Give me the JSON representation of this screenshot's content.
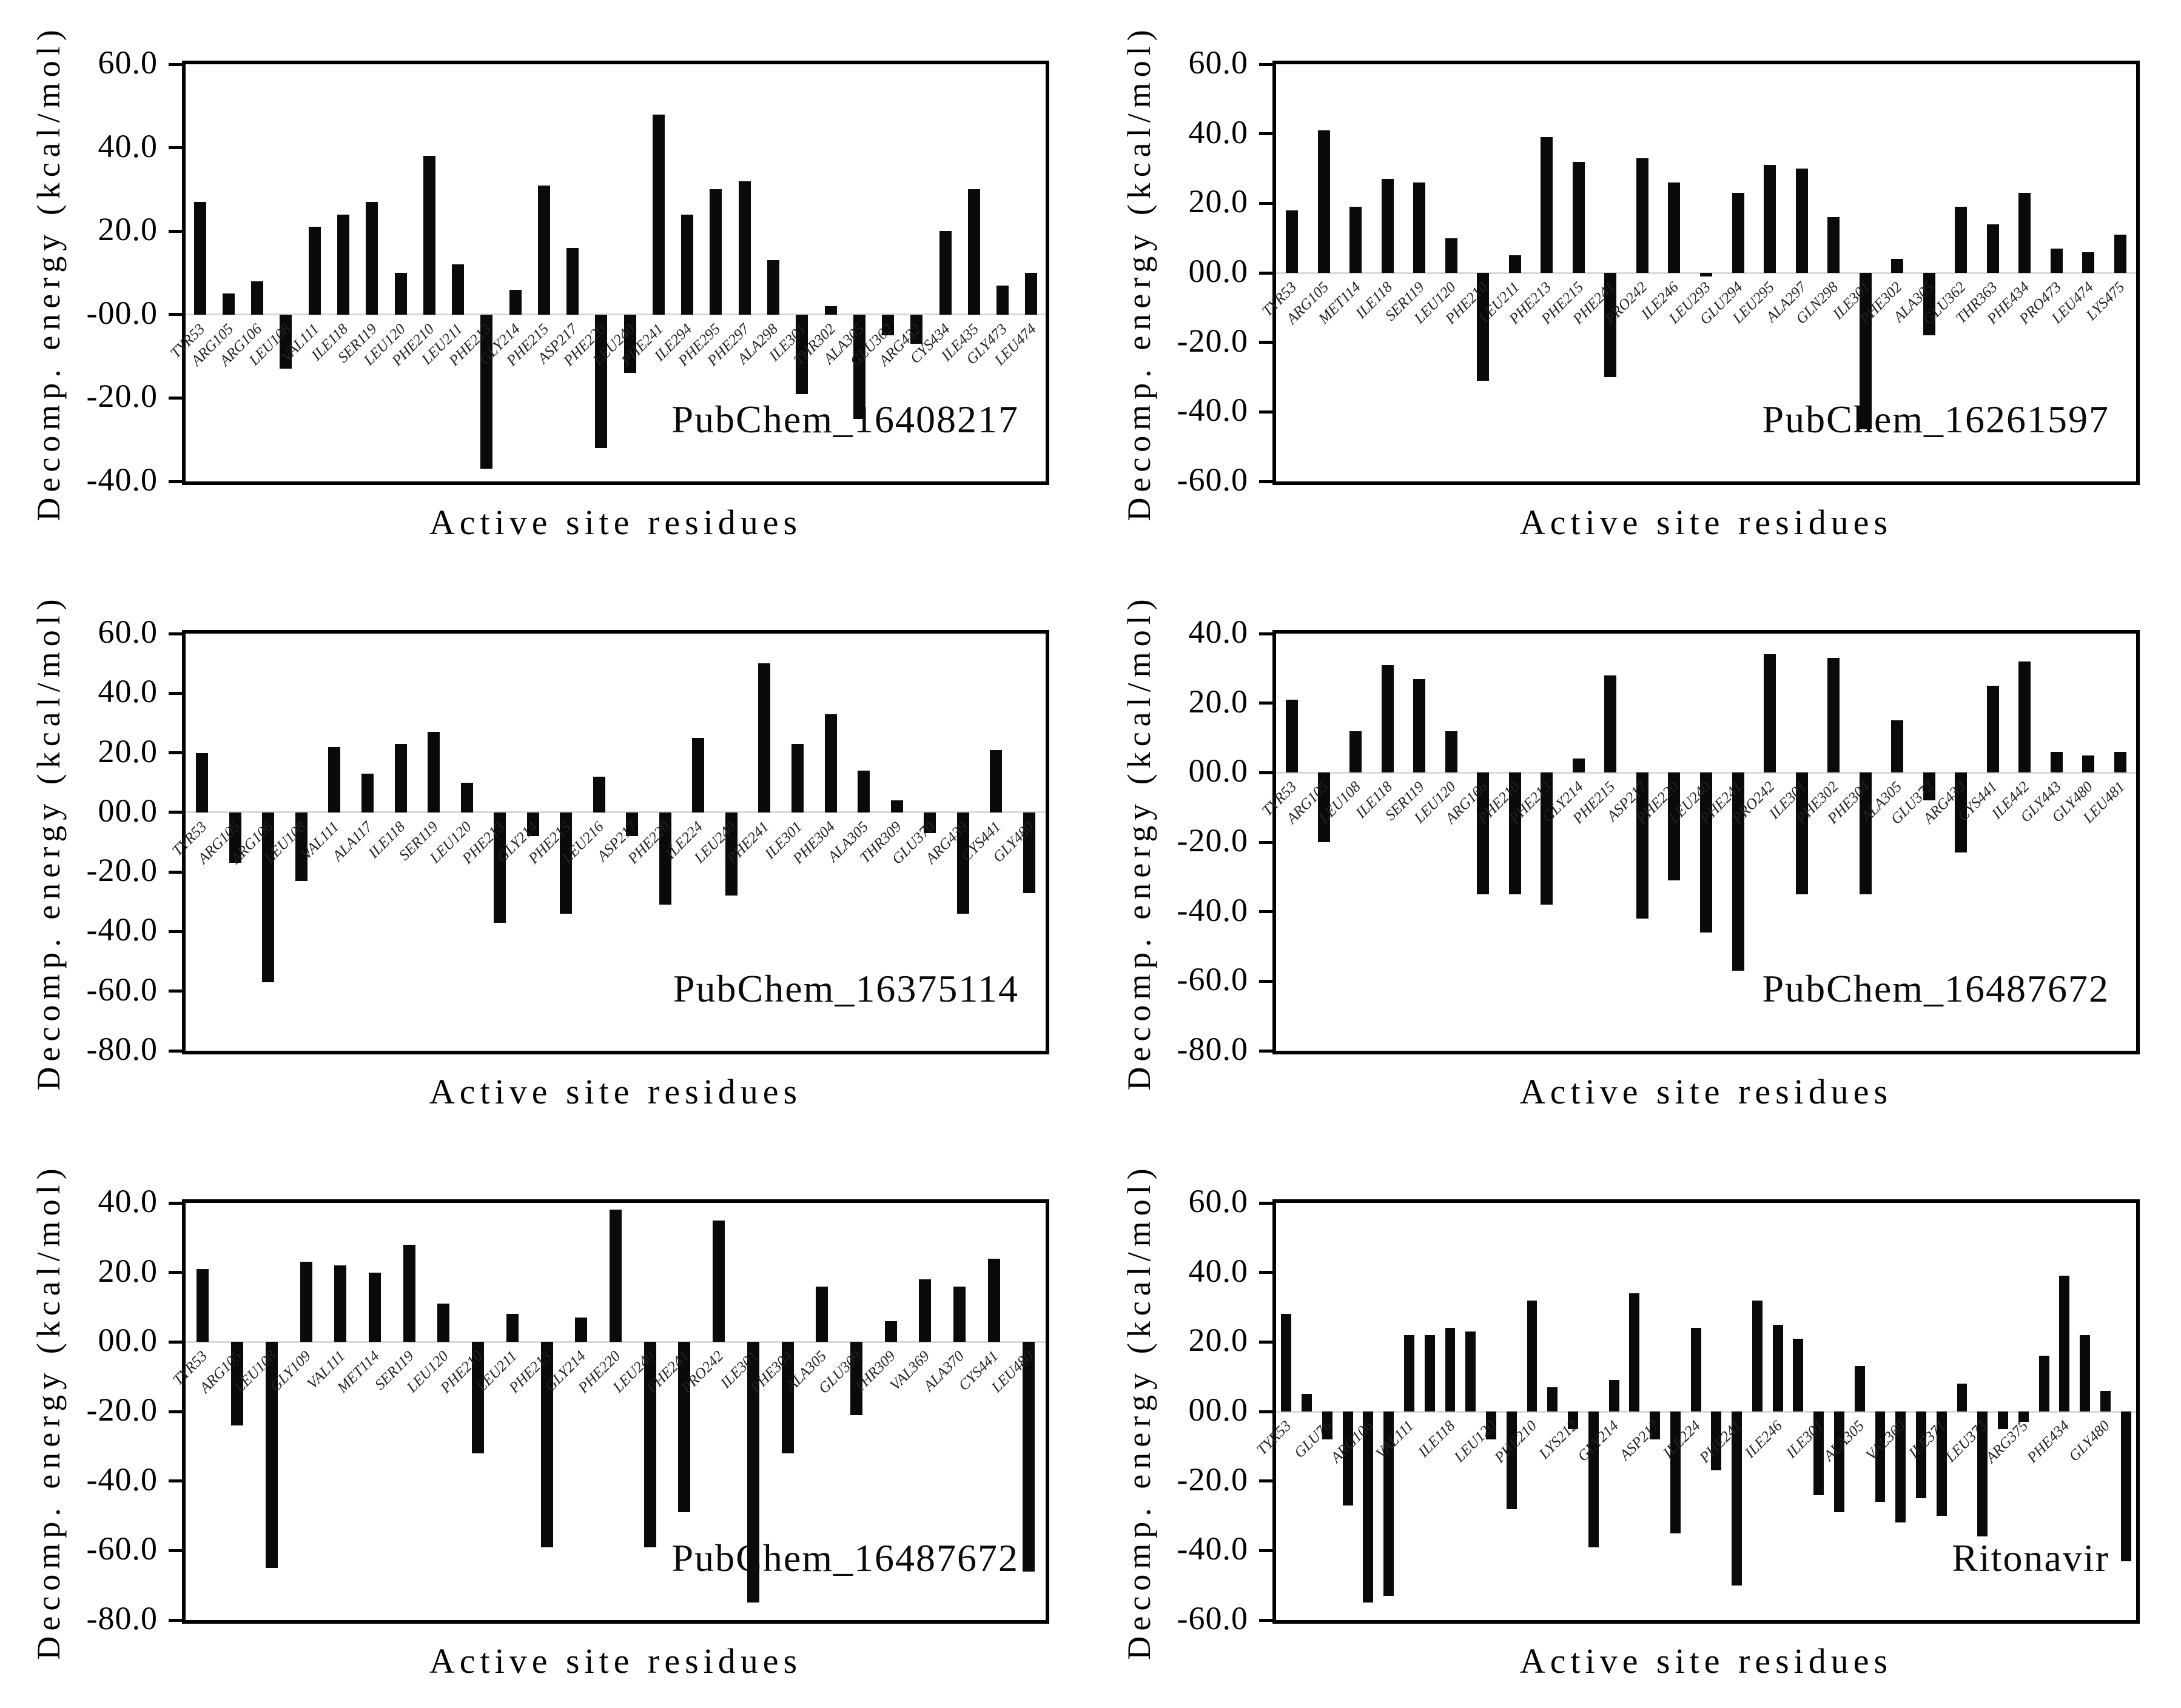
{
  "figure": {
    "xlabel": "Active site residues",
    "ylabel": "Decomp. energy (kcal/mol)",
    "bar_color": "#0a0a0a",
    "zero_line_color": "#d9d9d9"
  },
  "chart_data": [
    {
      "type": "bar",
      "panel": "top-left",
      "annotation": "PubChem_16408217",
      "xlabel": "Active site residues",
      "ylabel": "Decomp. energy (kcal/mol)",
      "ylim": [
        60,
        -40
      ],
      "grid": false,
      "yticks": [
        {
          "v": 60,
          "label": "60.0"
        },
        {
          "v": 40,
          "label": "40.0"
        },
        {
          "v": 20,
          "label": "20.0"
        },
        {
          "v": 0,
          "label": "-00.0"
        },
        {
          "v": -20,
          "label": "-20.0"
        },
        {
          "v": -40,
          "label": "-40.0"
        }
      ],
      "categories": [
        "TYR53",
        "ARG105",
        "ARG106",
        "LEU108",
        "VAL111",
        "ILE118",
        "SER119",
        "LEU120",
        "PHE210",
        "LEU211",
        "PHE213",
        "GLY214",
        "PHE215",
        "ASP217",
        "PHE220",
        "LEU240",
        "PHE241",
        "ILE294",
        "PHE295",
        "PHE297",
        "ALA298",
        "ILE301",
        "THR302",
        "ALA305",
        "GLU362",
        "ARG432",
        "CYS434",
        "ILE435",
        "GLY473",
        "LEU474"
      ],
      "values": [
        27,
        5,
        8,
        -13,
        21,
        24,
        27,
        10,
        38,
        12,
        -37,
        6,
        31,
        16,
        -32,
        -14,
        48,
        24,
        30,
        32,
        13,
        -19,
        2,
        -25,
        -5,
        -7,
        20,
        30,
        7,
        10
      ]
    },
    {
      "type": "bar",
      "panel": "top-right",
      "annotation": "PubChem_16261597",
      "xlabel": "Active site residues",
      "ylabel": "Decomp. energy (kcal/mol)",
      "ylim": [
        60,
        -60
      ],
      "grid": false,
      "yticks": [
        {
          "v": 60,
          "label": "60.0"
        },
        {
          "v": 40,
          "label": "40.0"
        },
        {
          "v": 20,
          "label": "20.0"
        },
        {
          "v": 0,
          "label": "00.0"
        },
        {
          "v": -20,
          "label": "-20.0"
        },
        {
          "v": -40,
          "label": "-40.0"
        },
        {
          "v": -60,
          "label": "-60.0"
        }
      ],
      "categories": [
        "TYR53",
        "ARG105",
        "MET114",
        "ILE118",
        "SER119",
        "LEU120",
        "PHE210",
        "LEU211",
        "PHE213",
        "PHE215",
        "PHE241",
        "PRO242",
        "ILE246",
        "LEU293",
        "GLU294",
        "LEU295",
        "ALA297",
        "GLN298",
        "ILE301",
        "PHE302",
        "ALA305",
        "GLU362",
        "THR363",
        "PHE434",
        "PRO473",
        "LEU474",
        "LYS475"
      ],
      "values": [
        18,
        41,
        19,
        27,
        26,
        10,
        -31,
        5,
        39,
        32,
        -30,
        33,
        26,
        -1,
        23,
        31,
        30,
        16,
        -45,
        4,
        -18,
        19,
        14,
        23,
        7,
        6,
        11
      ]
    },
    {
      "type": "bar",
      "panel": "middle-left",
      "annotation": "PubChem_16375114",
      "xlabel": "Active site residues",
      "ylabel": "Decomp. energy (kcal/mol)",
      "ylim": [
        60,
        -80
      ],
      "grid": false,
      "yticks": [
        {
          "v": 60,
          "label": "60.0"
        },
        {
          "v": 40,
          "label": "40.0"
        },
        {
          "v": 20,
          "label": "20.0"
        },
        {
          "v": 0,
          "label": "00.0"
        },
        {
          "v": -20,
          "label": "-20.0"
        },
        {
          "v": -40,
          "label": "-40.0"
        },
        {
          "v": -60,
          "label": "-60.0"
        },
        {
          "v": -80,
          "label": "-80.0"
        }
      ],
      "categories": [
        "TYR53",
        "ARG105",
        "ARG106",
        "LEU108",
        "VAL111",
        "ALA117",
        "ILE118",
        "SER119",
        "LEU120",
        "PHE213",
        "GLY214",
        "PHE215",
        "LEU216",
        "ASP217",
        "PHE220",
        "ILE224",
        "LEU240",
        "PHE241",
        "ILE301",
        "PHE304",
        "ALA305",
        "THR309",
        "GLU370",
        "ARG439",
        "CYS441",
        "GLY480"
      ],
      "values": [
        20,
        -17,
        -57,
        -23,
        22,
        13,
        23,
        27,
        10,
        -37,
        -8,
        -34,
        12,
        -8,
        -31,
        25,
        -28,
        50,
        23,
        33,
        14,
        4,
        -7,
        -34,
        21,
        -27
      ]
    },
    {
      "type": "bar",
      "panel": "middle-right",
      "annotation": "PubChem_16487672",
      "xlabel": "Active site residues",
      "ylabel": "Decomp. energy (kcal/mol)",
      "ylim": [
        40,
        -80
      ],
      "grid": false,
      "yticks": [
        {
          "v": 40,
          "label": "40.0"
        },
        {
          "v": 20,
          "label": "20.0"
        },
        {
          "v": 0,
          "label": "00.0"
        },
        {
          "v": -20,
          "label": "-20.0"
        },
        {
          "v": -40,
          "label": "-40.0"
        },
        {
          "v": -60,
          "label": "-60.0"
        },
        {
          "v": -80,
          "label": "-80.0"
        }
      ],
      "categories": [
        "TYR53",
        "ARG105",
        "LEU108",
        "ILE118",
        "SER119",
        "LEU120",
        "ARG166",
        "PHE210",
        "PHE213",
        "GLY214",
        "PHE215",
        "ASP217",
        "PHE220",
        "LEU240",
        "PHE241",
        "PRO242",
        "ILE301",
        "PHE302",
        "PHE304",
        "ALA305",
        "GLU372",
        "ARG439",
        "CYS441",
        "ILE442",
        "GLY443",
        "GLY480",
        "LEU481"
      ],
      "values": [
        21,
        -20,
        12,
        31,
        27,
        12,
        -35,
        -35,
        -38,
        4,
        28,
        -42,
        -31,
        -46,
        -57,
        34,
        -35,
        33,
        -35,
        15,
        -8,
        -23,
        25,
        32,
        6,
        5,
        6
      ]
    },
    {
      "type": "bar",
      "panel": "bottom-left",
      "annotation": "PubChem_16487672",
      "xlabel": "Active site residues",
      "ylabel": "Decomp. energy (kcal/mol)",
      "ylim": [
        40,
        -80
      ],
      "grid": false,
      "yticks": [
        {
          "v": 40,
          "label": "40.0"
        },
        {
          "v": 20,
          "label": "20.0"
        },
        {
          "v": 0,
          "label": "00.0"
        },
        {
          "v": -20,
          "label": "-20.0"
        },
        {
          "v": -40,
          "label": "-40.0"
        },
        {
          "v": -60,
          "label": "-60.0"
        },
        {
          "v": -80,
          "label": "-80.0"
        }
      ],
      "categories": [
        "TYR53",
        "ARG105",
        "LEU108",
        "GLY109",
        "VAL111",
        "MET114",
        "SER119",
        "LEU120",
        "PHE210",
        "LEU211",
        "PHE213",
        "GLY214",
        "PHE220",
        "LEU240",
        "PHE241",
        "PRO242",
        "ILE301",
        "PHE304",
        "ALA305",
        "GLU309",
        "THR309",
        "VAL369",
        "ALA370",
        "CYS441",
        "LEU480"
      ],
      "values": [
        21,
        -24,
        -65,
        23,
        22,
        20,
        28,
        11,
        -32,
        8,
        -59,
        7,
        38,
        -59,
        -49,
        35,
        -75,
        -32,
        16,
        -21,
        6,
        18,
        16,
        24,
        -66
      ]
    },
    {
      "type": "bar",
      "panel": "bottom-right",
      "annotation": "Ritonavir",
      "xlabel": "Active site residues",
      "ylabel": "Decomp. energy (kcal/mol)",
      "ylim": [
        60,
        -60
      ],
      "grid": false,
      "yticks": [
        {
          "v": 60,
          "label": "60.0"
        },
        {
          "v": 40,
          "label": "40.0"
        },
        {
          "v": 20,
          "label": "20.0"
        },
        {
          "v": 0,
          "label": "00.0"
        },
        {
          "v": -20,
          "label": "-20.0"
        },
        {
          "v": -40,
          "label": "-40.0"
        },
        {
          "v": -60,
          "label": "-60.0"
        }
      ],
      "categories": [
        "TYR53",
        "",
        "GLU76",
        "",
        "ARG106",
        "",
        "VAL111",
        "",
        "ILE118",
        "",
        "LEU120",
        "",
        "PHE210",
        "",
        "LYS212",
        "",
        "GLY214",
        "",
        "ASP217",
        "",
        "ILE224",
        "",
        "PHE241",
        "",
        "ILE246",
        "",
        "ILE301",
        "",
        "ALA305",
        "",
        "VAL369",
        "",
        "ILE371",
        "",
        "LEU373",
        "",
        "ARG375",
        "",
        "PHE434",
        "",
        "GLY480",
        ""
      ],
      "values": [
        28,
        5,
        -8,
        -27,
        -55,
        -53,
        22,
        22,
        24,
        23,
        -8,
        -28,
        32,
        7,
        -5,
        -39,
        9,
        34,
        -8,
        -35,
        24,
        -17,
        -50,
        32,
        25,
        21,
        -24,
        -29,
        13,
        -26,
        -32,
        -25,
        -30,
        8,
        -36,
        -5,
        -3,
        16,
        39,
        22,
        6,
        -43
      ]
    }
  ]
}
